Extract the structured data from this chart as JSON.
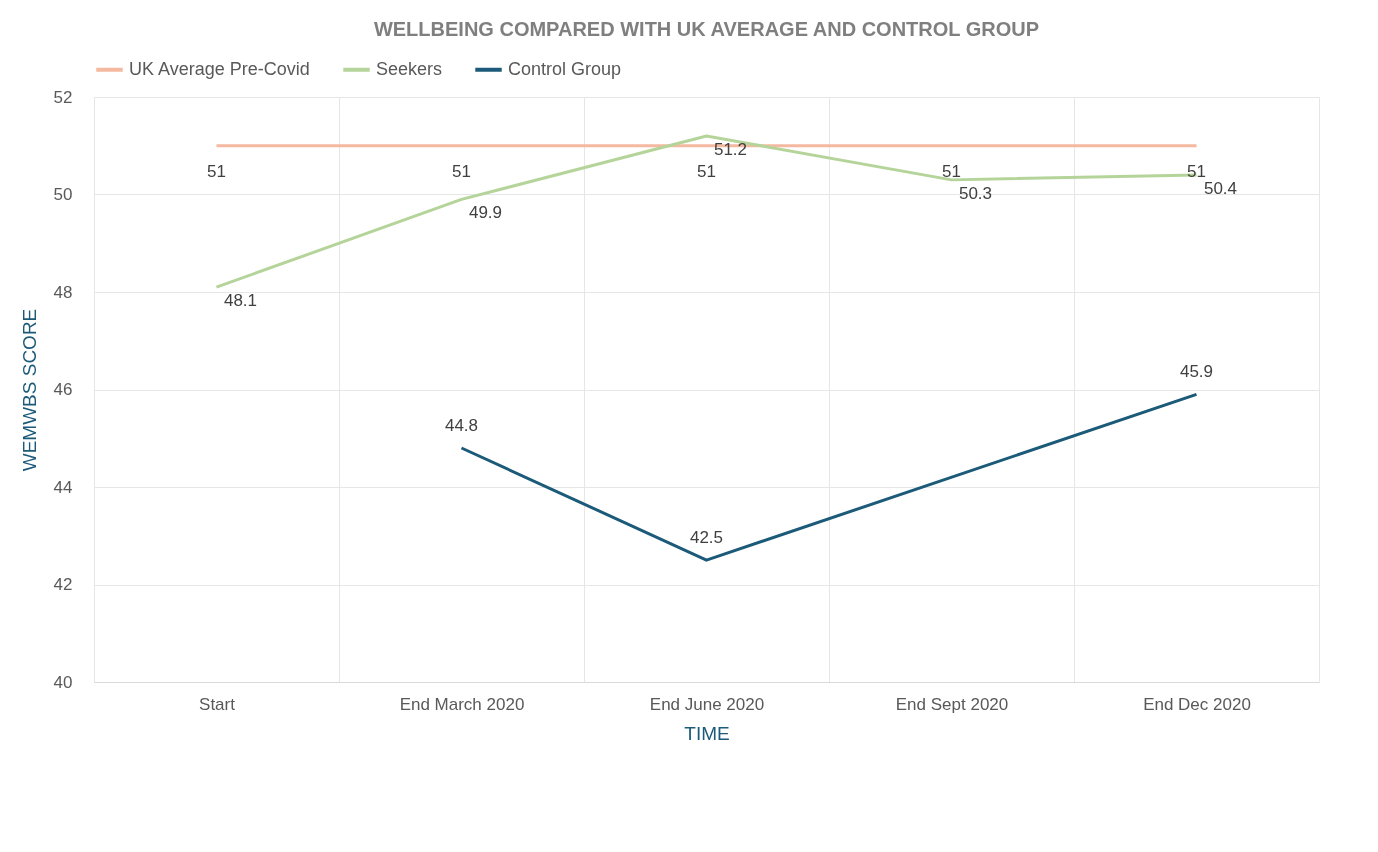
{
  "chart_data": {
    "type": "line",
    "title": "WELLBEING COMPARED WITH UK AVERAGE AND CONTROL GROUP",
    "xlabel": "TIME",
    "ylabel": "WEMWBS SCORE",
    "categories": [
      "Start",
      "End March 2020",
      "End June 2020",
      "End Sept 2020",
      "End Dec 2020"
    ],
    "series": [
      {
        "name": "UK Average Pre-Covid",
        "color": "#f4b9a0",
        "values": [
          51,
          51,
          51,
          51,
          51
        ]
      },
      {
        "name": "Seekers",
        "color": "#b5d49a",
        "values": [
          48.1,
          49.9,
          51.2,
          50.3,
          50.4
        ]
      },
      {
        "name": "Control Group",
        "color": "#1b5a78",
        "values": [
          null,
          44.8,
          42.5,
          null,
          45.9
        ]
      }
    ],
    "ylim": [
      40,
      52
    ],
    "yticks": [
      40,
      42,
      44,
      46,
      48,
      50,
      52
    ],
    "grid": true,
    "legend": "top",
    "data_labels": true,
    "marker": "none",
    "line_style": "solid"
  }
}
